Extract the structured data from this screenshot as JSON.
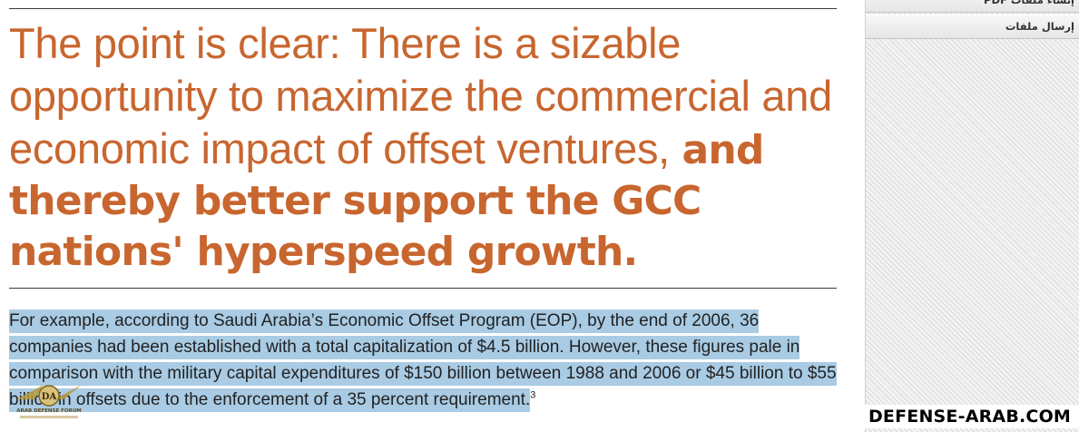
{
  "pull_quote": {
    "light_text": "The point is clear: There is a sizable opportunity to maximize the commercial and economic impact of offset ventures,",
    "bold_text": "and thereby better support the GCC nations' hyperspeed growth."
  },
  "body": {
    "highlighted_text": "For example, according to Saudi Arabia’s Economic Offset Program (EOP), by the end of 2006, 36 companies had been established with a total capitalization of $4.5 billion. However, these figures pale in comparison with the military capital expenditures of $150 billion between 1988 and 2006 or $45 billion to $55 billion in offsets due to the enforcement of a 35 percent requirement.",
    "footnote_ref": "3"
  },
  "sidebar": {
    "items": [
      {
        "label": "إنشاء ملفات PDF"
      },
      {
        "label": "إرسال ملفات"
      }
    ]
  },
  "watermark": {
    "site": "DEFENSE-ARAB.COM",
    "logo_text": "ARAB DEFENSE FORUM"
  },
  "colors": {
    "accent": "#c8662f",
    "highlight": "#a9cbe4",
    "text": "#222222"
  }
}
